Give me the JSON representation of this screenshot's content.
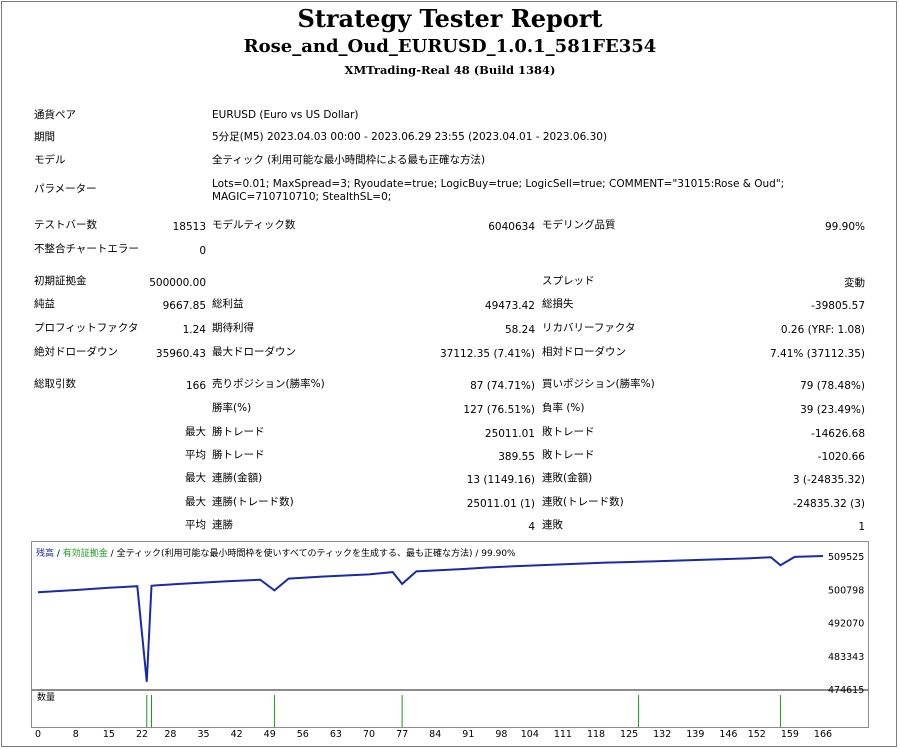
{
  "header": {
    "title": "Strategy Tester Report",
    "expert": "Rose_and_Oud_EURUSD_1.0.1_581FE354",
    "server": "XMTrading-Real 48 (Build 1384)"
  },
  "info": {
    "symbol_label": "通貨ペア",
    "symbol_value": "EURUSD (Euro vs US Dollar)",
    "period_label": "期間",
    "period_value": "5分足(M5) 2023.04.03 00:00 - 2023.06.29 23:55 (2023.04.01 - 2023.06.30)",
    "model_label": "モデル",
    "model_value": "全ティック (利用可能な最小時間枠による最も正確な方法)",
    "params_label": "パラメーター",
    "params_value": "Lots=0.01; MaxSpread=3; Ryoudate=true; LogicBuy=true; LogicSell=true; COMMENT=\"31015:Rose & Oud\"; MAGIC=710710710; StealthSL=0;"
  },
  "stats": {
    "bars_label": "テストバー数",
    "bars_value": "18513",
    "ticks_label": "モデルティック数",
    "ticks_value": "6040634",
    "quality_label": "モデリング品質",
    "quality_value": "99.90%",
    "mismatch_label": "不整合チャートエラー",
    "mismatch_value": "0",
    "deposit_label": "初期証拠金",
    "deposit_value": "500000.00",
    "spread_label": "スプレッド",
    "spread_value": "変動",
    "net_label": "純益",
    "net_value": "9667.85",
    "gross_profit_label": "総利益",
    "gross_profit_value": "49473.42",
    "gross_loss_label": "総損失",
    "gross_loss_value": "-39805.57",
    "pf_label": "プロフィットファクタ",
    "pf_value": "1.24",
    "expected_label": "期待利得",
    "expected_value": "58.24",
    "recovery_label": "リカバリーファクタ",
    "recovery_value": "0.26 (YRF: 1.08)",
    "abs_dd_label": "絶対ドローダウン",
    "abs_dd_value": "35960.43",
    "max_dd_label": "最大ドローダウン",
    "max_dd_value": "37112.35 (7.41%)",
    "rel_dd_label": "相対ドローダウン",
    "rel_dd_value": "7.41% (37112.35)",
    "trades_label": "総取引数",
    "trades_value": "166",
    "short_label": "売りポジション(勝率%)",
    "short_value": "87 (74.71%)",
    "long_label": "買いポジション(勝率%)",
    "long_value": "79 (78.48%)",
    "win_label": "勝率(%)",
    "win_value": "127 (76.51%)",
    "loss_label": "負率 (%)",
    "loss_value": "39 (23.49%)",
    "max_word": "最大",
    "avg_word": "平均",
    "largest_win_label": "勝トレード",
    "largest_win_value": "25011.01",
    "largest_loss_label": "敗トレード",
    "largest_loss_value": "-14626.68",
    "avg_win_label": "勝トレード",
    "avg_win_value": "389.55",
    "avg_loss_label": "敗トレード",
    "avg_loss_value": "-1020.66",
    "max_cons_wins_label": "連勝(金額)",
    "max_cons_wins_value": "13 (1149.16)",
    "max_cons_losses_label": "連敗(金額)",
    "max_cons_losses_value": "3 (-24835.32)",
    "max_cons_profit_label": "連勝(トレード数)",
    "max_cons_profit_value": "25011.01 (1)",
    "max_cons_loss_label": "連敗(トレード数)",
    "max_cons_loss_value": "-24835.32 (3)",
    "avg_cons_wins_label": "連勝",
    "avg_cons_wins_value": "4",
    "avg_cons_losses_label": "連敗",
    "avg_cons_losses_value": "1"
  },
  "chart": {
    "legend_balance": "残高",
    "legend_sep1": " / ",
    "legend_equity": "有効証拠金",
    "legend_sep2": " / ",
    "legend_model": "全ティック(利用可能な最小時間枠を使いすべてのティックを生成する、最も正確な方法)",
    "legend_quality": " / 99.90%",
    "volume_label": "数量",
    "colors": {
      "balance": "#1b2aa3",
      "equity": "#1a9a1a",
      "volume": "#1a9a1a"
    }
  },
  "chart_data": {
    "type": "line",
    "x": [
      0,
      8,
      15,
      21,
      23,
      24,
      25,
      30,
      40,
      47,
      50,
      53,
      60,
      70,
      75,
      77,
      80,
      90,
      95,
      100,
      110,
      120,
      127,
      130,
      140,
      150,
      155,
      157,
      160,
      166
    ],
    "series": [
      {
        "name": "残高",
        "values": [
          500000,
          500600,
          501200,
          501600,
          476500,
          501700,
          501800,
          502200,
          502900,
          503300,
          500500,
          503600,
          504100,
          504700,
          505300,
          502200,
          505500,
          506100,
          506500,
          506800,
          507300,
          507800,
          508000,
          508100,
          508500,
          508900,
          509200,
          507100,
          509300,
          509525
        ]
      }
    ],
    "ylim": [
      474615,
      509525
    ],
    "yticks": [
      "509525",
      "500798",
      "492070",
      "483343",
      "474615"
    ],
    "xticks": [
      "0",
      "8",
      "15",
      "22",
      "28",
      "35",
      "42",
      "49",
      "56",
      "63",
      "70",
      "77",
      "84",
      "91",
      "98",
      "104",
      "111",
      "118",
      "125",
      "132",
      "139",
      "146",
      "152",
      "159",
      "166"
    ],
    "volume": {
      "x": [
        23,
        24,
        50,
        77,
        127,
        157
      ],
      "values": [
        1,
        1,
        1,
        1,
        1,
        1
      ]
    }
  }
}
